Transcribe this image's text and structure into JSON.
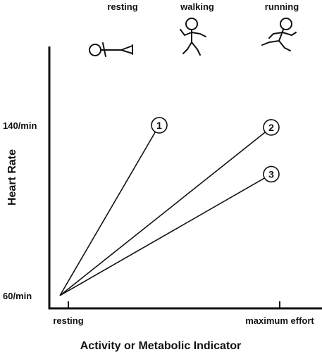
{
  "chart_data": {
    "type": "line",
    "xlabel": "Activity or Metabolic Indicator",
    "ylabel": "Heart Rate",
    "x_ticks": [
      {
        "label": "resting",
        "value": 0
      },
      {
        "label": "maximum effort",
        "value": 1
      }
    ],
    "y_ticks": [
      {
        "label": "140/min",
        "value": 140
      },
      {
        "label": "60/min",
        "value": 60
      }
    ],
    "activity_labels": [
      "resting",
      "walking",
      "running"
    ],
    "activity_icons": [
      "resting-person-icon",
      "walking-person-icon",
      "running-person-icon"
    ],
    "origin": {
      "x": -0.04,
      "y": 60
    },
    "series": [
      {
        "name": "1",
        "x": [
          -0.04,
          0.43
        ],
        "y": [
          60,
          140
        ]
      },
      {
        "name": "2",
        "x": [
          -0.04,
          0.96
        ],
        "y": [
          60,
          139
        ]
      },
      {
        "name": "3",
        "x": [
          -0.04,
          0.96
        ],
        "y": [
          60,
          117
        ]
      }
    ],
    "xlim": [
      -0.09,
      1.21
    ],
    "ylim": [
      54,
      177
    ],
    "grid": false,
    "legend": "none",
    "colors": {
      "line": "#111111",
      "background": "#ffffff"
    }
  }
}
